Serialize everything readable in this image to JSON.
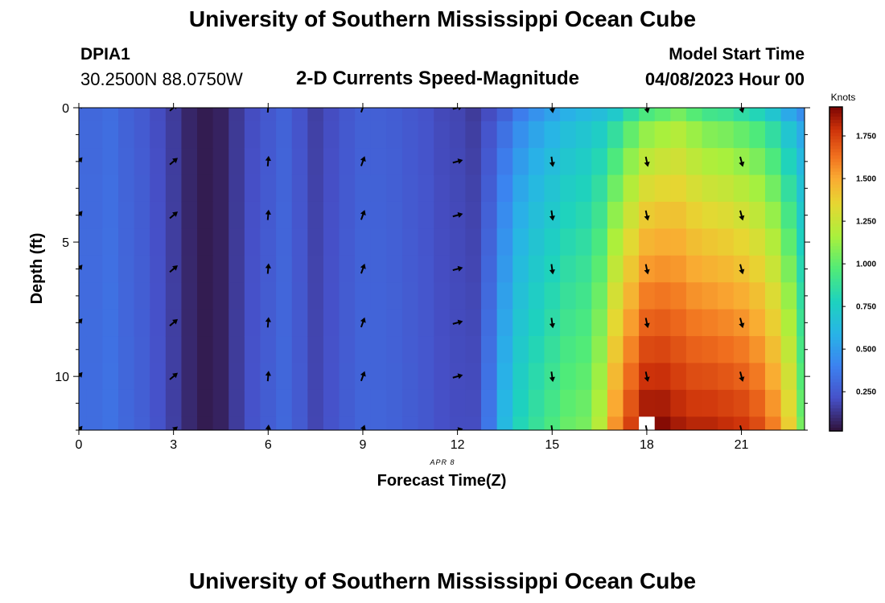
{
  "header": {
    "title": "University of Southern Mississippi Ocean Cube",
    "station": "DPIA1",
    "coordinates": "30.2500N  88.0750W",
    "subtitle": "2-D Currents Speed-Magnitude",
    "model_start_label": "Model Start Time",
    "model_start_value": "04/08/2023 Hour 00"
  },
  "footer": {
    "title": "University of Southern Mississippi Ocean Cube"
  },
  "chart_data": {
    "type": "heatmap",
    "title": "2-D Currents Speed-Magnitude",
    "xlabel": "Forecast Time(Z)",
    "ylabel": "Depth (ft)",
    "date_label": "APR 8",
    "x_ticks": [
      0,
      3,
      6,
      9,
      12,
      15,
      18,
      21
    ],
    "x_tick_labels": [
      "0",
      "3",
      "6",
      "9",
      "12",
      "15",
      "18",
      "21"
    ],
    "y_ticks": [
      0,
      5,
      10
    ],
    "y_tick_labels": [
      "0",
      "5",
      "10"
    ],
    "xlim": [
      0,
      23
    ],
    "ylim": [
      0,
      12
    ],
    "colorbar": {
      "label": "Knots",
      "range": [
        0.02,
        1.92
      ],
      "ticks": [
        0.25,
        0.5,
        0.75,
        1.0,
        1.25,
        1.5,
        1.75
      ],
      "tick_labels": [
        "0.250",
        "0.500",
        "0.750",
        "1.000",
        "1.250",
        "1.500",
        "1.750"
      ],
      "colormap": "turbo"
    },
    "hours": [
      0,
      0.5,
      1,
      1.5,
      2,
      2.5,
      3,
      3.5,
      4,
      4.5,
      5,
      5.5,
      6,
      6.5,
      7,
      7.5,
      8,
      8.5,
      9,
      9.5,
      10,
      10.5,
      11,
      11.5,
      12,
      12.5,
      13,
      13.5,
      14,
      14.5,
      15,
      15.5,
      16,
      16.5,
      17,
      17.5,
      18,
      18.5,
      19,
      19.5,
      20,
      20.5,
      21,
      21.5,
      22,
      22.5,
      23
    ],
    "depths": [
      0,
      1,
      2,
      3,
      4,
      5,
      6,
      7,
      8,
      9,
      10,
      11,
      12
    ],
    "surface_speed_by_hour": [
      0.3,
      0.3,
      0.32,
      0.28,
      0.25,
      0.2,
      0.15,
      0.08,
      0.05,
      0.07,
      0.14,
      0.2,
      0.24,
      0.28,
      0.22,
      0.16,
      0.2,
      0.24,
      0.27,
      0.27,
      0.26,
      0.24,
      0.22,
      0.19,
      0.18,
      0.15,
      0.2,
      0.28,
      0.38,
      0.46,
      0.52,
      0.58,
      0.62,
      0.65,
      0.72,
      0.85,
      0.95,
      1.0,
      1.05,
      0.98,
      0.92,
      0.9,
      0.85,
      0.8,
      0.7,
      0.55,
      0.45
    ],
    "bottom_speed_by_hour": [
      0.32,
      0.32,
      0.34,
      0.3,
      0.27,
      0.22,
      0.16,
      0.09,
      0.05,
      0.07,
      0.15,
      0.22,
      0.26,
      0.3,
      0.25,
      0.18,
      0.22,
      0.26,
      0.29,
      0.29,
      0.28,
      0.26,
      0.24,
      0.21,
      0.2,
      0.2,
      0.36,
      0.62,
      0.8,
      0.88,
      0.95,
      1.02,
      1.05,
      1.2,
      1.55,
      1.75,
      1.9,
      1.9,
      1.85,
      1.82,
      1.82,
      1.8,
      1.78,
      1.72,
      1.6,
      1.38,
      1.05
    ],
    "missing_cells": [
      {
        "hour": 18,
        "depth": 12
      }
    ],
    "vector_columns": [
      {
        "hour": 0,
        "direction_deg": 40
      },
      {
        "hour": 3,
        "direction_deg": 50
      },
      {
        "hour": 6,
        "direction_deg": 5
      },
      {
        "hour": 9,
        "direction_deg": 20
      },
      {
        "hour": 12,
        "direction_deg": 75
      },
      {
        "hour": 15,
        "direction_deg": 172
      },
      {
        "hour": 18,
        "direction_deg": 168
      },
      {
        "hour": 21,
        "direction_deg": 165
      }
    ],
    "vector_depths": [
      0,
      2,
      4,
      6,
      8,
      10,
      12
    ]
  }
}
